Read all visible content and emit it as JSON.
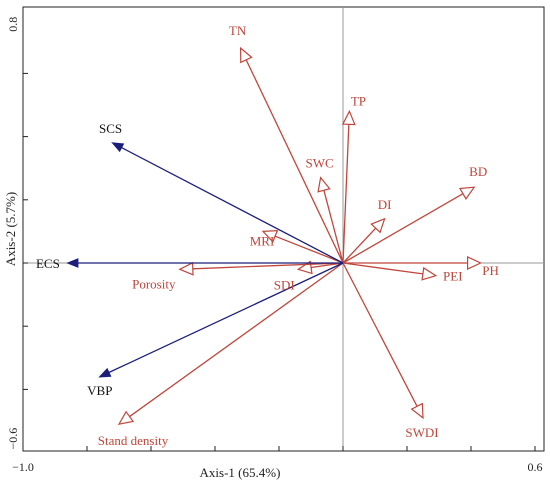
{
  "chart_data": {
    "type": "biplot",
    "xlabel": "Axis-1 (65.4%)",
    "ylabel": "Axis-2 (5.7%)",
    "xlim": [
      -1.0,
      0.6
    ],
    "ylim": [
      -0.6,
      0.8
    ],
    "x_tick_labels": [
      {
        "value": -1.0,
        "label": "−1.0"
      },
      {
        "value": 0.6,
        "label": "0.6"
      }
    ],
    "y_tick_labels": [
      {
        "value": 0.8,
        "label": "0.8"
      },
      {
        "value": -0.6,
        "label": "−0.6"
      }
    ],
    "colors": {
      "response": "#1b1f7a",
      "explanatory": "#c0463b",
      "zero_line": "#9a9a9a",
      "frame": "#222222"
    },
    "response_vectors": [
      {
        "label": "SCS",
        "x": -0.72,
        "y": 0.38
      },
      {
        "label": "ECS",
        "x": -0.86,
        "y": 0.0
      },
      {
        "label": "VBP",
        "x": -0.76,
        "y": -0.36
      }
    ],
    "explanatory_vectors": [
      {
        "label": "TN",
        "x": -0.32,
        "y": 0.68
      },
      {
        "label": "TP",
        "x": 0.02,
        "y": 0.48
      },
      {
        "label": "SWC",
        "x": -0.07,
        "y": 0.27
      },
      {
        "label": "BD",
        "x": 0.41,
        "y": 0.24
      },
      {
        "label": "DI",
        "x": 0.13,
        "y": 0.14
      },
      {
        "label": "MRI",
        "x": -0.25,
        "y": 0.1
      },
      {
        "label": "PH",
        "x": 0.43,
        "y": 0.0
      },
      {
        "label": "PEI",
        "x": 0.29,
        "y": -0.04
      },
      {
        "label": "SDI",
        "x": -0.14,
        "y": -0.02
      },
      {
        "label": "Porosity",
        "x": -0.51,
        "y": -0.02
      },
      {
        "label": "SWDI",
        "x": 0.25,
        "y": -0.49
      },
      {
        "label": "Stand density",
        "x": -0.7,
        "y": -0.51
      }
    ]
  }
}
